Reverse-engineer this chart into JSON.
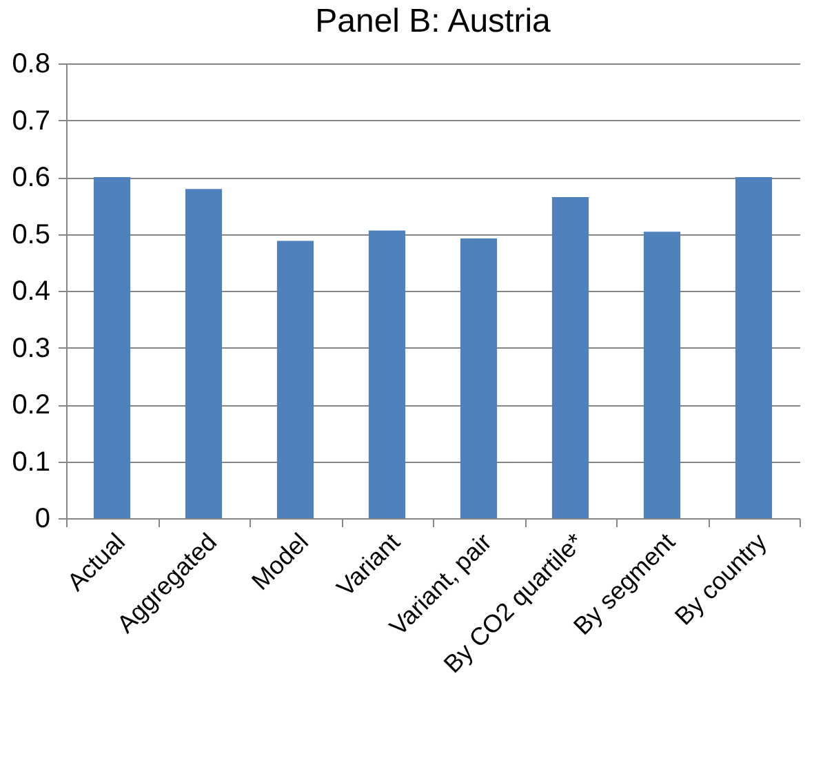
{
  "chart_data": {
    "type": "bar",
    "title": "Panel B: Austria",
    "categories": [
      "Actual",
      "Aggregated",
      "Model",
      "Variant",
      "Variant, pair",
      "By CO2 quartile*",
      "By segment",
      "By country"
    ],
    "values": [
      0.6,
      0.579,
      0.488,
      0.506,
      0.492,
      0.565,
      0.504,
      0.6
    ],
    "color": "#4f81bd",
    "ylim": [
      0,
      0.8
    ],
    "yticks": [
      0,
      0.1,
      0.2,
      0.3,
      0.4,
      0.5,
      0.6,
      0.7,
      0.8
    ],
    "grid": true
  }
}
